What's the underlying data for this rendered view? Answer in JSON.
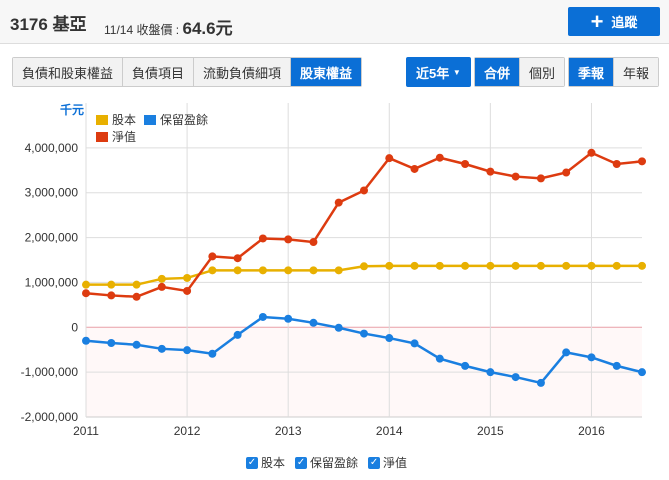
{
  "header": {
    "title": "3176 基亞",
    "date_label": "11/14 收盤價 :",
    "price": "64.6元",
    "follow": "追蹤"
  },
  "tabs": [
    "負債和股東權益",
    "負債項目",
    "流動負債細項",
    "股東權益"
  ],
  "range": "近5年",
  "scope": [
    "合併",
    "個別"
  ],
  "period": [
    "季報",
    "年報"
  ],
  "chart_data": {
    "type": "line",
    "unit": "千元",
    "x": [
      2011,
      2011.25,
      2011.5,
      2011.75,
      2012,
      2012.25,
      2012.5,
      2012.75,
      2013,
      2013.25,
      2013.5,
      2013.75,
      2014,
      2014.25,
      2014.5,
      2014.75,
      2015,
      2015.25,
      2015.5,
      2015.75,
      2016,
      2016.25,
      2016.5
    ],
    "xticks": [
      "2011",
      "2012",
      "2013",
      "2014",
      "2015",
      "2016"
    ],
    "yticks": [
      {
        "v": 4000000,
        "l": "4,000,000"
      },
      {
        "v": 3000000,
        "l": "3,000,000"
      },
      {
        "v": 2000000,
        "l": "2,000,000"
      },
      {
        "v": 1000000,
        "l": "1,000,000"
      },
      {
        "v": 0,
        "l": "0"
      },
      {
        "v": -1000000,
        "l": "-1,000,000"
      },
      {
        "v": -2000000,
        "l": "-2,000,000"
      }
    ],
    "ylim": [
      -2000000,
      5000000
    ],
    "series": [
      {
        "name": "股本",
        "color": "#e8b000",
        "values": [
          950000,
          950000,
          950000,
          1080000,
          1100000,
          1270000,
          1270000,
          1270000,
          1270000,
          1270000,
          1270000,
          1360000,
          1370000,
          1370000,
          1370000,
          1370000,
          1370000,
          1370000,
          1370000,
          1370000,
          1370000,
          1370000,
          1370000
        ]
      },
      {
        "name": "保留盈餘",
        "color": "#1a7fe0",
        "values": [
          -300000,
          -350000,
          -390000,
          -480000,
          -510000,
          -590000,
          -170000,
          230000,
          190000,
          100000,
          -10000,
          -140000,
          -240000,
          -360000,
          -700000,
          -860000,
          -1000000,
          -1110000,
          -1240000,
          -560000,
          -670000,
          -860000,
          -1000000
        ]
      },
      {
        "name": "淨值",
        "color": "#dd3b10",
        "values": [
          760000,
          710000,
          680000,
          900000,
          810000,
          1580000,
          1540000,
          1980000,
          1960000,
          1900000,
          2780000,
          3050000,
          3770000,
          3530000,
          3780000,
          3640000,
          3470000,
          3360000,
          3320000,
          3450000,
          3890000,
          3640000,
          3700000
        ]
      }
    ]
  }
}
